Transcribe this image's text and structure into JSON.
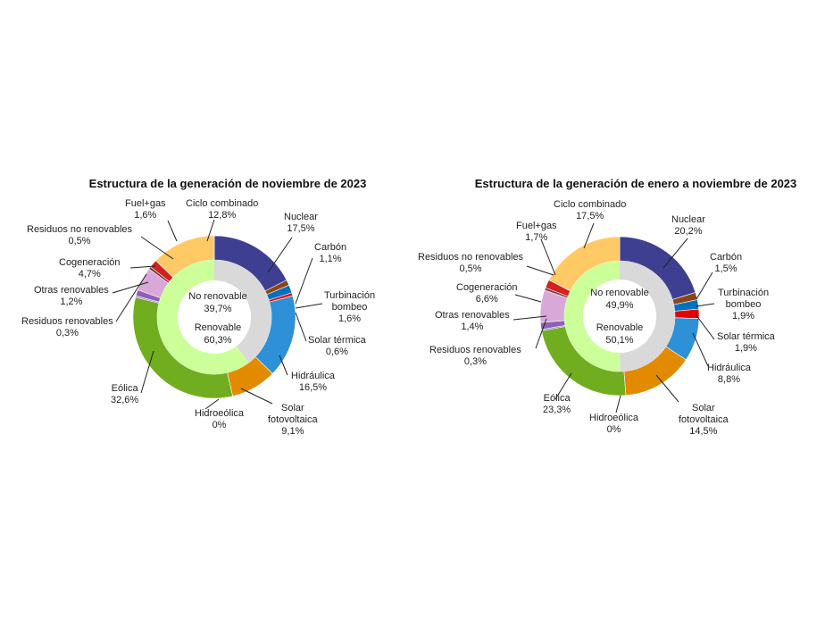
{
  "chart_data": [
    {
      "type": "pie",
      "title": "Estructura de la generación de noviembre de 2023",
      "inner": [
        {
          "name": "No renovable",
          "pct": "39,7%",
          "value": 39.7,
          "color": "#d9d9d9"
        },
        {
          "name": "Renovable",
          "pct": "60,3%",
          "value": 60.3,
          "color": "#ccff99"
        }
      ],
      "outer": [
        {
          "name": "Nuclear",
          "pct": "17,5%",
          "value": 17.5,
          "color": "#3f3f91"
        },
        {
          "name": "Carbón",
          "pct": "1,1%",
          "value": 1.1,
          "color": "#8b4513"
        },
        {
          "name": "Turbinación bombeo",
          "line1": "Turbinación",
          "line2": "bombeo",
          "pct": "1,6%",
          "value": 1.6,
          "color": "#0070c0"
        },
        {
          "name": "Solar térmica",
          "pct": "0,6%",
          "value": 0.6,
          "color": "#e60000"
        },
        {
          "name": "Hidráulica",
          "pct": "16,5%",
          "value": 16.5,
          "color": "#2e90d6"
        },
        {
          "name": "Solar fotovoltaica",
          "line1": "Solar",
          "line2": "fotovoltaica",
          "pct": "9,1%",
          "value": 9.1,
          "color": "#e38b00"
        },
        {
          "name": "Hidroeólica",
          "pct": "0%",
          "value": 0,
          "color": "#5b8c00"
        },
        {
          "name": "Eólica",
          "pct": "32,6%",
          "value": 32.6,
          "color": "#70ad1f"
        },
        {
          "name": "Residuos renovables",
          "pct": "0,3%",
          "value": 0.3,
          "color": "#9370db"
        },
        {
          "name": "Otras renovables",
          "pct": "1,2%",
          "value": 1.2,
          "color": "#8f5fb8"
        },
        {
          "name": "Cogeneración",
          "pct": "4,7%",
          "value": 4.7,
          "color": "#d8a9d8"
        },
        {
          "name": "Residuos no renovables",
          "pct": "0,5%",
          "value": 0.5,
          "color": "#7a2f2f"
        },
        {
          "name": "Fuel+gas",
          "pct": "1,6%",
          "value": 1.6,
          "color": "#d42020"
        },
        {
          "name": "Ciclo combinado",
          "pct": "12,8%",
          "value": 12.8,
          "color": "#ffc966"
        }
      ]
    },
    {
      "type": "pie",
      "title": "Estructura de la generación de enero a noviembre de 2023",
      "inner": [
        {
          "name": "No renovable",
          "pct": "49,9%",
          "value": 49.9,
          "color": "#d9d9d9"
        },
        {
          "name": "Renovable",
          "pct": "50,1%",
          "value": 50.1,
          "color": "#ccff99"
        }
      ],
      "outer": [
        {
          "name": "Nuclear",
          "pct": "20,2%",
          "value": 20.2,
          "color": "#3f3f91"
        },
        {
          "name": "Carbón",
          "pct": "1,5%",
          "value": 1.5,
          "color": "#8b4513"
        },
        {
          "name": "Turbinación bombeo",
          "line1": "Turbinación",
          "line2": "bombeo",
          "pct": "1,9%",
          "value": 1.9,
          "color": "#0070c0"
        },
        {
          "name": "Solar térmica",
          "pct": "1,9%",
          "value": 1.9,
          "color": "#e60000"
        },
        {
          "name": "Hidráulica",
          "pct": "8,8%",
          "value": 8.8,
          "color": "#2e90d6"
        },
        {
          "name": "Solar fotovoltaica",
          "line1": "Solar",
          "line2": "fotovoltaica",
          "pct": "14,5%",
          "value": 14.5,
          "color": "#e38b00"
        },
        {
          "name": "Hidroeólica",
          "pct": "0%",
          "value": 0,
          "color": "#5b8c00"
        },
        {
          "name": "Eólica",
          "pct": "23,3%",
          "value": 23.3,
          "color": "#70ad1f"
        },
        {
          "name": "Residuos renovables",
          "pct": "0,3%",
          "value": 0.3,
          "color": "#9370db"
        },
        {
          "name": "Otras renovables",
          "pct": "1,4%",
          "value": 1.4,
          "color": "#8f5fb8"
        },
        {
          "name": "Cogeneración",
          "pct": "6,6%",
          "value": 6.6,
          "color": "#d8a9d8"
        },
        {
          "name": "Residuos no renovables",
          "pct": "0,5%",
          "value": 0.5,
          "color": "#7a2f2f"
        },
        {
          "name": "Fuel+gas",
          "pct": "1,7%",
          "value": 1.7,
          "color": "#d42020"
        },
        {
          "name": "Ciclo combinado",
          "pct": "17,5%",
          "value": 17.5,
          "color": "#ffc966"
        }
      ]
    }
  ]
}
